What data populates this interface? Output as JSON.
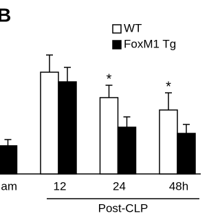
{
  "chart_data": {
    "type": "bar",
    "panel_label": "B",
    "group_label": "Post-CLP",
    "categories": [
      "am",
      "12",
      "24",
      "48h"
    ],
    "series": [
      {
        "name": "WT",
        "color": "#ffffff",
        "values": [
          null,
          148,
          111,
          93
        ],
        "errors": [
          null,
          25,
          18,
          25
        ]
      },
      {
        "name": "FoxM1 Tg",
        "color": "#000000",
        "values": [
          41,
          134,
          68,
          59
        ],
        "errors": [
          9,
          21,
          15,
          13
        ]
      }
    ],
    "annotations": [
      "*",
      "*"
    ],
    "ylim": [
      0,
      180
    ]
  }
}
